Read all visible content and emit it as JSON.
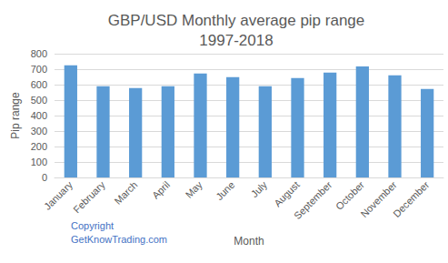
{
  "chart_data": {
    "type": "bar",
    "title": "GBP/USD Monthly average pip range\n1997-2018",
    "x_label": "Month",
    "y_label": "Pip range",
    "annotation": "Copyright\nGetKnowTrading.com",
    "categories": [
      "January",
      "February",
      "March",
      "April",
      "May",
      "June",
      "July",
      "August",
      "September",
      "October",
      "November",
      "December"
    ],
    "values": [
      725,
      590,
      578,
      590,
      672,
      648,
      590,
      642,
      678,
      718,
      660,
      572
    ],
    "color": "#5b9bd5",
    "ylim": [
      0,
      800
    ],
    "yticks": [
      0,
      100,
      200,
      300,
      400,
      500,
      600,
      700,
      800
    ],
    "grid": true
  }
}
